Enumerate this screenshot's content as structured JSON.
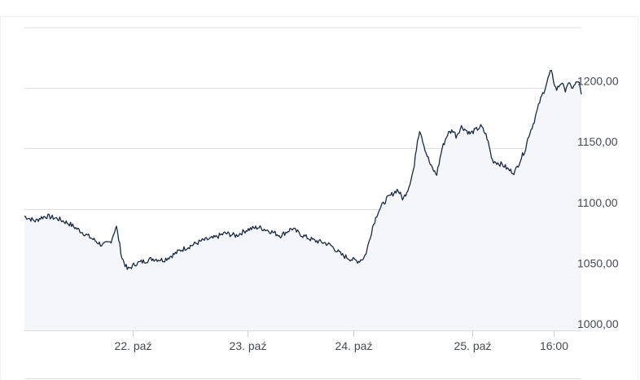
{
  "chart_data": {
    "type": "area",
    "title": "",
    "xlabel": "",
    "ylabel": "",
    "ylim": [
      1000,
      1225
    ],
    "y_ticks": [
      1000,
      1050,
      1100,
      1150,
      1200
    ],
    "y_tick_labels": [
      "1000,00",
      "1050,00",
      "1100,00",
      "1150,00",
      "1200,00"
    ],
    "x_ticks": [
      {
        "label": "22. paź",
        "t": 0.195
      },
      {
        "label": "23. paź",
        "t": 0.401
      },
      {
        "label": "24. paź",
        "t": 0.591
      },
      {
        "label": "25. paź",
        "t": 0.804
      },
      {
        "label": "16:00",
        "t": 0.951
      }
    ],
    "grid": true,
    "legend": "none",
    "colors": {
      "line": "#1b2a41",
      "fill": "#f4f6f9",
      "grid": "#dcdfe4"
    },
    "series": [
      {
        "x": [
          0.0,
          0.02,
          0.03,
          0.04,
          0.06,
          0.08,
          0.1,
          0.12,
          0.14,
          0.155,
          0.165,
          0.175,
          0.185,
          0.2,
          0.23,
          0.25,
          0.27,
          0.28,
          0.3,
          0.32,
          0.34,
          0.36,
          0.38,
          0.4,
          0.42,
          0.44,
          0.46,
          0.48,
          0.5,
          0.52,
          0.54,
          0.55,
          0.56,
          0.57,
          0.58,
          0.59,
          0.6,
          0.61,
          0.615,
          0.625,
          0.635,
          0.65,
          0.66,
          0.67,
          0.68,
          0.69,
          0.7,
          0.705,
          0.71,
          0.72,
          0.73,
          0.74,
          0.75,
          0.76,
          0.77,
          0.775,
          0.785,
          0.8,
          0.82,
          0.83,
          0.84,
          0.85,
          0.86,
          0.87,
          0.88,
          0.89,
          0.9,
          0.905,
          0.915,
          0.925,
          0.935,
          0.945,
          0.955,
          0.965,
          0.97,
          0.975,
          0.985,
          0.995,
          1.0
        ],
        "values": [
          1094,
          1090,
          1093,
          1094,
          1092,
          1088,
          1082,
          1076,
          1070,
          1073,
          1086,
          1060,
          1050,
          1055,
          1059,
          1058,
          1063,
          1066,
          1070,
          1074,
          1076,
          1080,
          1078,
          1083,
          1085,
          1082,
          1078,
          1084,
          1078,
          1074,
          1072,
          1070,
          1066,
          1062,
          1060,
          1058,
          1057,
          1060,
          1066,
          1085,
          1098,
          1108,
          1112,
          1116,
          1108,
          1118,
          1135,
          1155,
          1166,
          1148,
          1135,
          1128,
          1150,
          1162,
          1165,
          1160,
          1168,
          1162,
          1168,
          1160,
          1140,
          1138,
          1136,
          1132,
          1130,
          1140,
          1150,
          1160,
          1172,
          1188,
          1200,
          1214,
          1198,
          1205,
          1197,
          1203,
          1200,
          1206,
          1193
        ]
      }
    ]
  }
}
